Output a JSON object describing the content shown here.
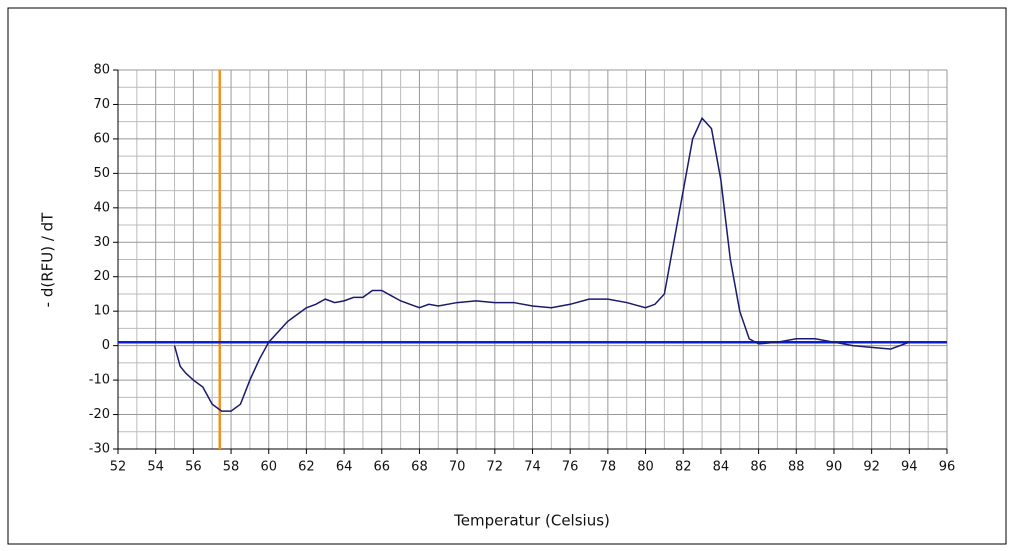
{
  "chart_data": {
    "type": "line",
    "x_label": "Temperatur (Celsius)",
    "y_label": "- d(RFU) / dT",
    "xlim": [
      52,
      96
    ],
    "xticks": [
      52,
      54,
      56,
      58,
      60,
      62,
      64,
      66,
      68,
      70,
      72,
      74,
      76,
      78,
      80,
      82,
      84,
      86,
      88,
      90,
      92,
      94,
      96
    ],
    "x_minor_grid": [
      53,
      55,
      57,
      59,
      61,
      63,
      65,
      67,
      69,
      71,
      73,
      75,
      77,
      79,
      81,
      83,
      85,
      87,
      89,
      91,
      93,
      95
    ],
    "ylim": [
      -30,
      80
    ],
    "yticks": [
      -30,
      -20,
      -10,
      0,
      10,
      20,
      30,
      40,
      50,
      60,
      70,
      80
    ],
    "y_minor_grid": [
      -25,
      -15,
      -5,
      5,
      15,
      25,
      35,
      45,
      55,
      65,
      75
    ],
    "grid": true,
    "threshold": {
      "y": 1,
      "color": "#0a1ed8"
    },
    "marker": {
      "x": 57.4,
      "color": "#f0921e"
    },
    "x": [
      55,
      55.3,
      55.6,
      56,
      56.5,
      57,
      57.5,
      58,
      58.5,
      59,
      59.5,
      60,
      60.5,
      61,
      61.5,
      62,
      62.5,
      63,
      63.5,
      64,
      64.5,
      65,
      65.5,
      66,
      66.5,
      67,
      67.5,
      68,
      68.5,
      69,
      70,
      71,
      72,
      73,
      74,
      75,
      76,
      77,
      78,
      79,
      80,
      80.5,
      81,
      81.5,
      82,
      82.5,
      83,
      83.5,
      84,
      84.5,
      85,
      85.5,
      86,
      87,
      88,
      89,
      90,
      91,
      92,
      93,
      94
    ],
    "series": [
      {
        "color": "#1a1a6e",
        "values": [
          0,
          -6,
          -8,
          -10,
          -12,
          -17,
          -19,
          -19,
          -17,
          -10,
          -4,
          1,
          4,
          7,
          9,
          11,
          12,
          13.5,
          12.5,
          13,
          14,
          14,
          16,
          16,
          14.5,
          13,
          12,
          11,
          12,
          11.5,
          12.5,
          13,
          12.5,
          12.5,
          11.5,
          11,
          12,
          13.5,
          13.5,
          12.5,
          11,
          12,
          15,
          30,
          45,
          60,
          66,
          63,
          48,
          25,
          10,
          2,
          0.5,
          1,
          2,
          2,
          1,
          0,
          -0.5,
          -1,
          1
        ]
      }
    ]
  }
}
